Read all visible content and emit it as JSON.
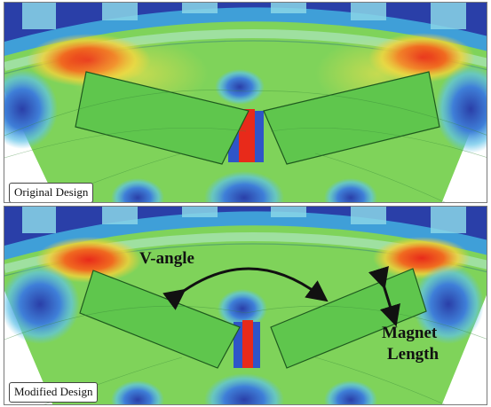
{
  "panels": [
    {
      "label": "Original Design",
      "variant": "original"
    },
    {
      "label": "Modified Design",
      "variant": "modified"
    }
  ],
  "annotations": {
    "v_angle": "V-angle",
    "magnet_line1": "Magnet",
    "magnet_line2": "Length"
  },
  "colors": {
    "field_low": "#2f55c8",
    "field_mid": "#6fd04f",
    "field_high": "#e82a1a",
    "field_warm": "#f3d23a",
    "steel_dark": "#2a3fa8",
    "magnet": "#5fc64d"
  }
}
